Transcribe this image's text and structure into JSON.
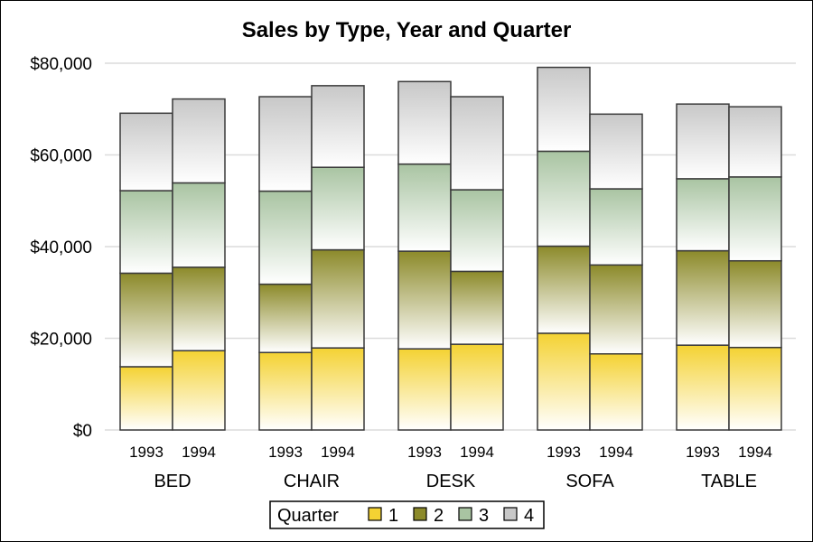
{
  "chart_data": {
    "type": "bar",
    "stacked": true,
    "title": "Sales by Type, Year and Quarter",
    "xlabel": "",
    "ylabel": "",
    "groups": [
      "BED",
      "CHAIR",
      "DESK",
      "SOFA",
      "TABLE"
    ],
    "years": [
      "1993",
      "1994"
    ],
    "y_tick_labels": [
      "$0",
      "$20,000",
      "$40,000",
      "$60,000",
      "$80,000"
    ],
    "y_ticks": [
      0,
      20000,
      40000,
      60000,
      80000
    ],
    "ylim": [
      0,
      80000
    ],
    "grid": true,
    "legend": {
      "title": "Quarter",
      "placement": "bottom-center",
      "entries": [
        "1",
        "2",
        "3",
        "4"
      ]
    },
    "series": [
      {
        "name": "1",
        "color": "#f4d233",
        "values": [
          13800,
          17300,
          16900,
          17900,
          17700,
          18700,
          21100,
          16600,
          18500,
          18000
        ]
      },
      {
        "name": "2",
        "color": "#8c8a2a",
        "values": [
          20400,
          18200,
          14900,
          21400,
          21300,
          15900,
          19000,
          19400,
          20600,
          18900
        ]
      },
      {
        "name": "3",
        "color": "#a9c4a2",
        "values": [
          18000,
          18400,
          20300,
          18000,
          19000,
          17800,
          20700,
          16600,
          15700,
          18300
        ]
      },
      {
        "name": "4",
        "color": "#c8c8c8",
        "values": [
          16900,
          18300,
          20600,
          17800,
          18000,
          20300,
          18300,
          16300,
          16300,
          15300
        ]
      }
    ]
  }
}
